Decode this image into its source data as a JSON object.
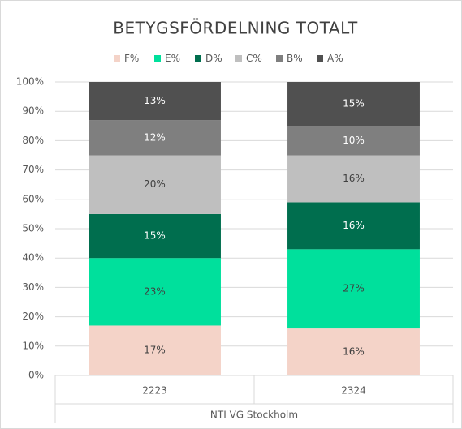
{
  "chart_data": {
    "type": "stacked_bar",
    "title": "BETYGSFÖRDELNING TOTALT",
    "categories": [
      "2223",
      "2324"
    ],
    "x_label": "NTI VG Stockholm",
    "series": [
      {
        "name": "F%",
        "color": "#f4d3c8",
        "values": [
          17,
          16
        ],
        "value_labels": [
          "17%",
          "16%"
        ]
      },
      {
        "name": "E%",
        "color": "#00e09c",
        "values": [
          23,
          27
        ],
        "value_labels": [
          "23%",
          "27%"
        ]
      },
      {
        "name": "D%",
        "color": "#006e4e",
        "values": [
          15,
          16
        ],
        "value_labels": [
          "15%",
          "16%"
        ]
      },
      {
        "name": "C%",
        "color": "#bfbfbf",
        "values": [
          20,
          16
        ],
        "value_labels": [
          "20%",
          "16%"
        ]
      },
      {
        "name": "B%",
        "color": "#7f7f7f",
        "values": [
          12,
          10
        ],
        "value_labels": [
          "12%",
          "10%"
        ]
      },
      {
        "name": "A%",
        "color": "#505050",
        "values": [
          13,
          15
        ],
        "value_labels": [
          "13%",
          "15%"
        ]
      }
    ],
    "ylim": [
      0,
      100
    ],
    "yticks": [
      {
        "value": 0,
        "label": "0%"
      },
      {
        "value": 10,
        "label": "10%"
      },
      {
        "value": 20,
        "label": "20%"
      },
      {
        "value": 30,
        "label": "30%"
      },
      {
        "value": 40,
        "label": "40%"
      },
      {
        "value": 50,
        "label": "50%"
      },
      {
        "value": 60,
        "label": "60%"
      },
      {
        "value": 70,
        "label": "70%"
      },
      {
        "value": 80,
        "label": "80%"
      },
      {
        "value": 90,
        "label": "90%"
      },
      {
        "value": 100,
        "label": "100%"
      }
    ],
    "grid": true,
    "legend": "top"
  }
}
